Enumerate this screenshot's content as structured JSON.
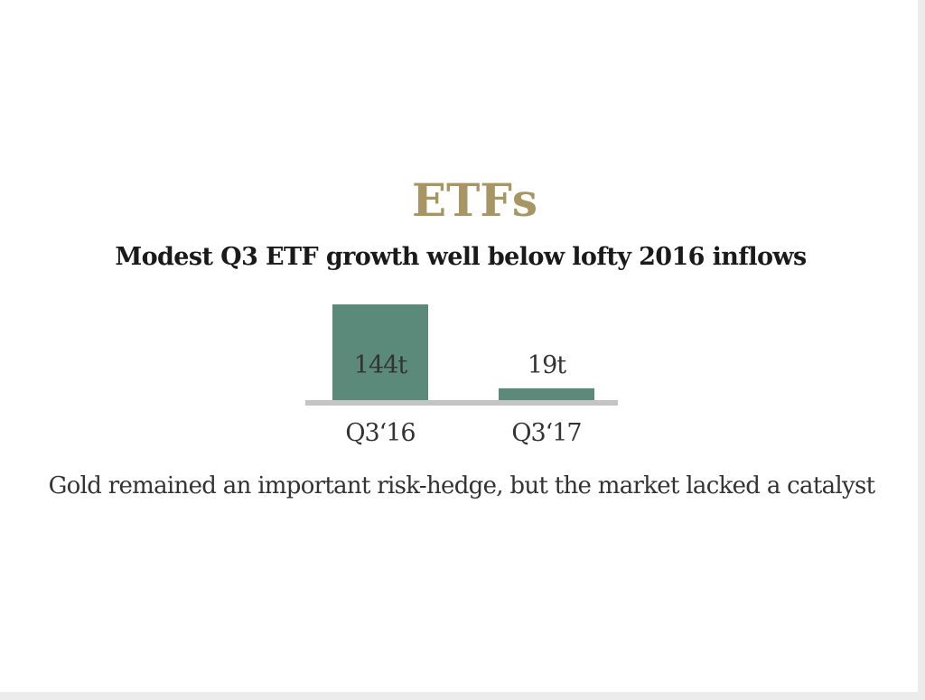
{
  "header": {
    "title": "ETFs",
    "subtitle": "Modest Q3 ETF growth well below lofty 2016 inflows"
  },
  "caption": "Gold remained an important risk-hedge, but the market lacked a catalyst",
  "colors": {
    "title": "#a89564",
    "bar": "#5b8a7a",
    "baseline": "#c4c4c4"
  },
  "chart_data": {
    "type": "bar",
    "categories": [
      "Q3‘16",
      "Q3‘17"
    ],
    "values": [
      144,
      19
    ],
    "data_labels": [
      "144t",
      "19t"
    ],
    "title": "ETFs",
    "subtitle": "Modest Q3 ETF growth well below lofty 2016 inflows",
    "xlabel": "",
    "ylabel": "",
    "ylim": [
      0,
      144
    ],
    "grid": false,
    "legend": "none"
  }
}
